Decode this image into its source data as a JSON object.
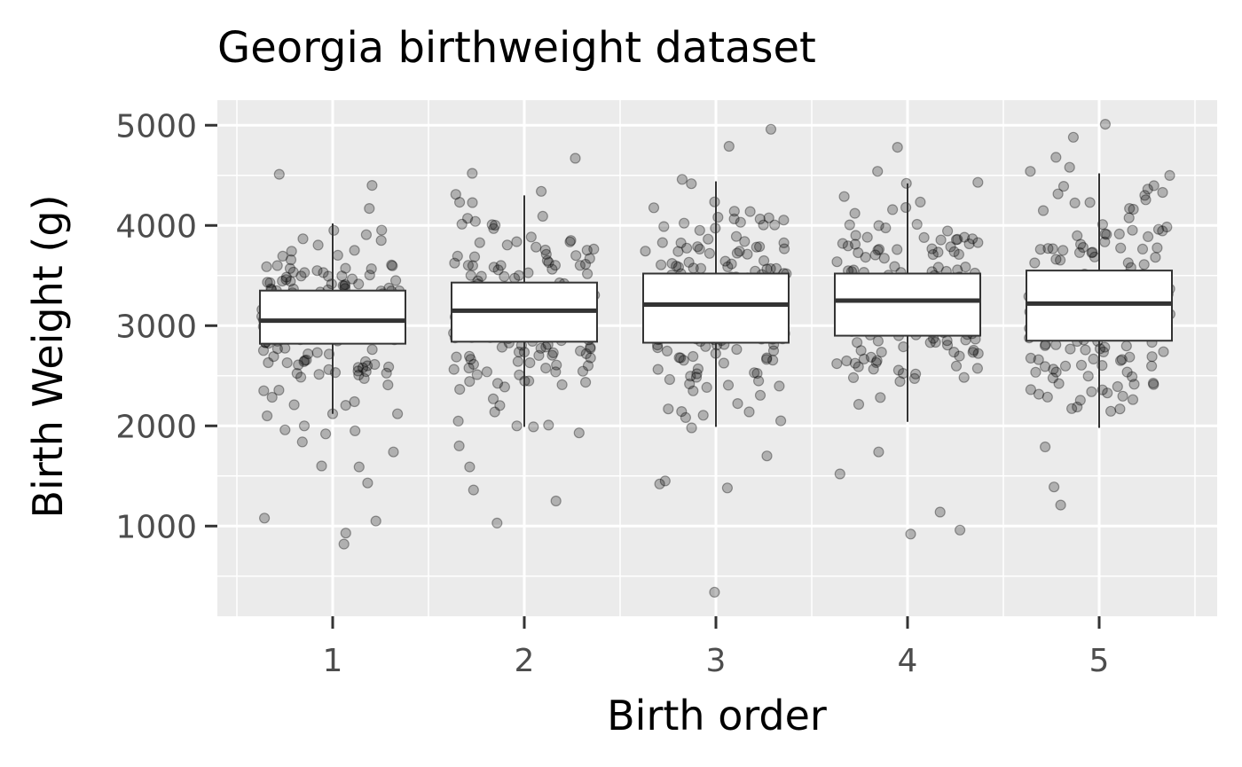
{
  "chart_data": {
    "type": "box",
    "title": "Georgia birthweight dataset",
    "xlabel": "Birth order",
    "ylabel": "Birth Weight (g)",
    "categories": [
      "1",
      "2",
      "3",
      "4",
      "5"
    ],
    "ylim": [
      100,
      5250
    ],
    "yticks": [
      1000,
      2000,
      3000,
      4000,
      5000
    ],
    "grid": true,
    "legend": "none",
    "colors": {
      "panel": "#EBEBEB",
      "grid": "#FFFFFF",
      "box_fill": "#FFFFFF",
      "box_line": "#333333",
      "point": "#000000"
    },
    "boxes": [
      {
        "category": "1",
        "whisker_low": 2120,
        "q1": 2820,
        "median": 3050,
        "q3": 3350,
        "whisker_high": 4020
      },
      {
        "category": "2",
        "whisker_low": 1990,
        "q1": 2840,
        "median": 3150,
        "q3": 3430,
        "whisker_high": 4300
      },
      {
        "category": "3",
        "whisker_low": 1990,
        "q1": 2830,
        "median": 3210,
        "q3": 3520,
        "whisker_high": 4440
      },
      {
        "category": "4",
        "whisker_low": 2040,
        "q1": 2900,
        "median": 3250,
        "q3": 3520,
        "whisker_high": 4420
      },
      {
        "category": "5",
        "whisker_low": 1980,
        "q1": 2850,
        "median": 3220,
        "q3": 3550,
        "whisker_high": 4520
      }
    ],
    "outliers": [
      {
        "category": "1",
        "values": [
          2210,
          1950,
          1920,
          1430,
          1590,
          1080,
          930,
          1050,
          820,
          1600,
          1740,
          1840,
          2000,
          1960,
          2100,
          4400,
          4510,
          4170
        ]
      },
      {
        "category": "2",
        "values": [
          1990,
          1360,
          1590,
          1030,
          1250,
          1800,
          2000,
          1930,
          4520,
          4670,
          4340,
          4310
        ]
      },
      {
        "category": "3",
        "values": [
          1700,
          1450,
          1380,
          1420,
          340,
          1980,
          4790,
          4960,
          4460,
          2140,
          2050
        ]
      },
      {
        "category": "4",
        "values": [
          1140,
          1520,
          1740,
          960,
          920,
          4540,
          4780,
          4430
        ]
      },
      {
        "category": "5",
        "values": [
          1790,
          1390,
          1210,
          5010,
          4880,
          4680,
          4540,
          4580
        ]
      }
    ]
  }
}
